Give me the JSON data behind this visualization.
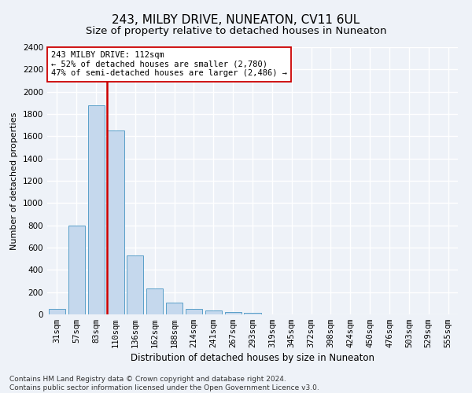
{
  "title": "243, MILBY DRIVE, NUNEATON, CV11 6UL",
  "subtitle": "Size of property relative to detached houses in Nuneaton",
  "xlabel": "Distribution of detached houses by size in Nuneaton",
  "ylabel": "Number of detached properties",
  "categories": [
    "31sqm",
    "57sqm",
    "83sqm",
    "110sqm",
    "136sqm",
    "162sqm",
    "188sqm",
    "214sqm",
    "241sqm",
    "267sqm",
    "293sqm",
    "319sqm",
    "345sqm",
    "372sqm",
    "398sqm",
    "424sqm",
    "450sqm",
    "476sqm",
    "503sqm",
    "529sqm",
    "555sqm"
  ],
  "values": [
    50,
    800,
    1880,
    1650,
    530,
    235,
    105,
    50,
    35,
    20,
    15,
    0,
    0,
    0,
    0,
    0,
    0,
    0,
    0,
    0,
    0
  ],
  "bar_color": "#c5d8ed",
  "bar_edge_color": "#5a9fc9",
  "vline_color": "#cc0000",
  "annotation_line1": "243 MILBY DRIVE: 112sqm",
  "annotation_line2": "← 52% of detached houses are smaller (2,780)",
  "annotation_line3": "47% of semi-detached houses are larger (2,486) →",
  "annotation_box_facecolor": "#ffffff",
  "annotation_box_edgecolor": "#cc0000",
  "ylim": [
    0,
    2400
  ],
  "yticks": [
    0,
    200,
    400,
    600,
    800,
    1000,
    1200,
    1400,
    1600,
    1800,
    2000,
    2200,
    2400
  ],
  "title_fontsize": 11,
  "subtitle_fontsize": 9.5,
  "xlabel_fontsize": 8.5,
  "ylabel_fontsize": 8,
  "tick_fontsize": 7.5,
  "annot_fontsize": 7.5,
  "footer_line1": "Contains HM Land Registry data © Crown copyright and database right 2024.",
  "footer_line2": "Contains public sector information licensed under the Open Government Licence v3.0.",
  "background_color": "#eef2f8",
  "plot_bg_color": "#eef2f8",
  "grid_color": "#ffffff",
  "footer_fontsize": 6.5
}
